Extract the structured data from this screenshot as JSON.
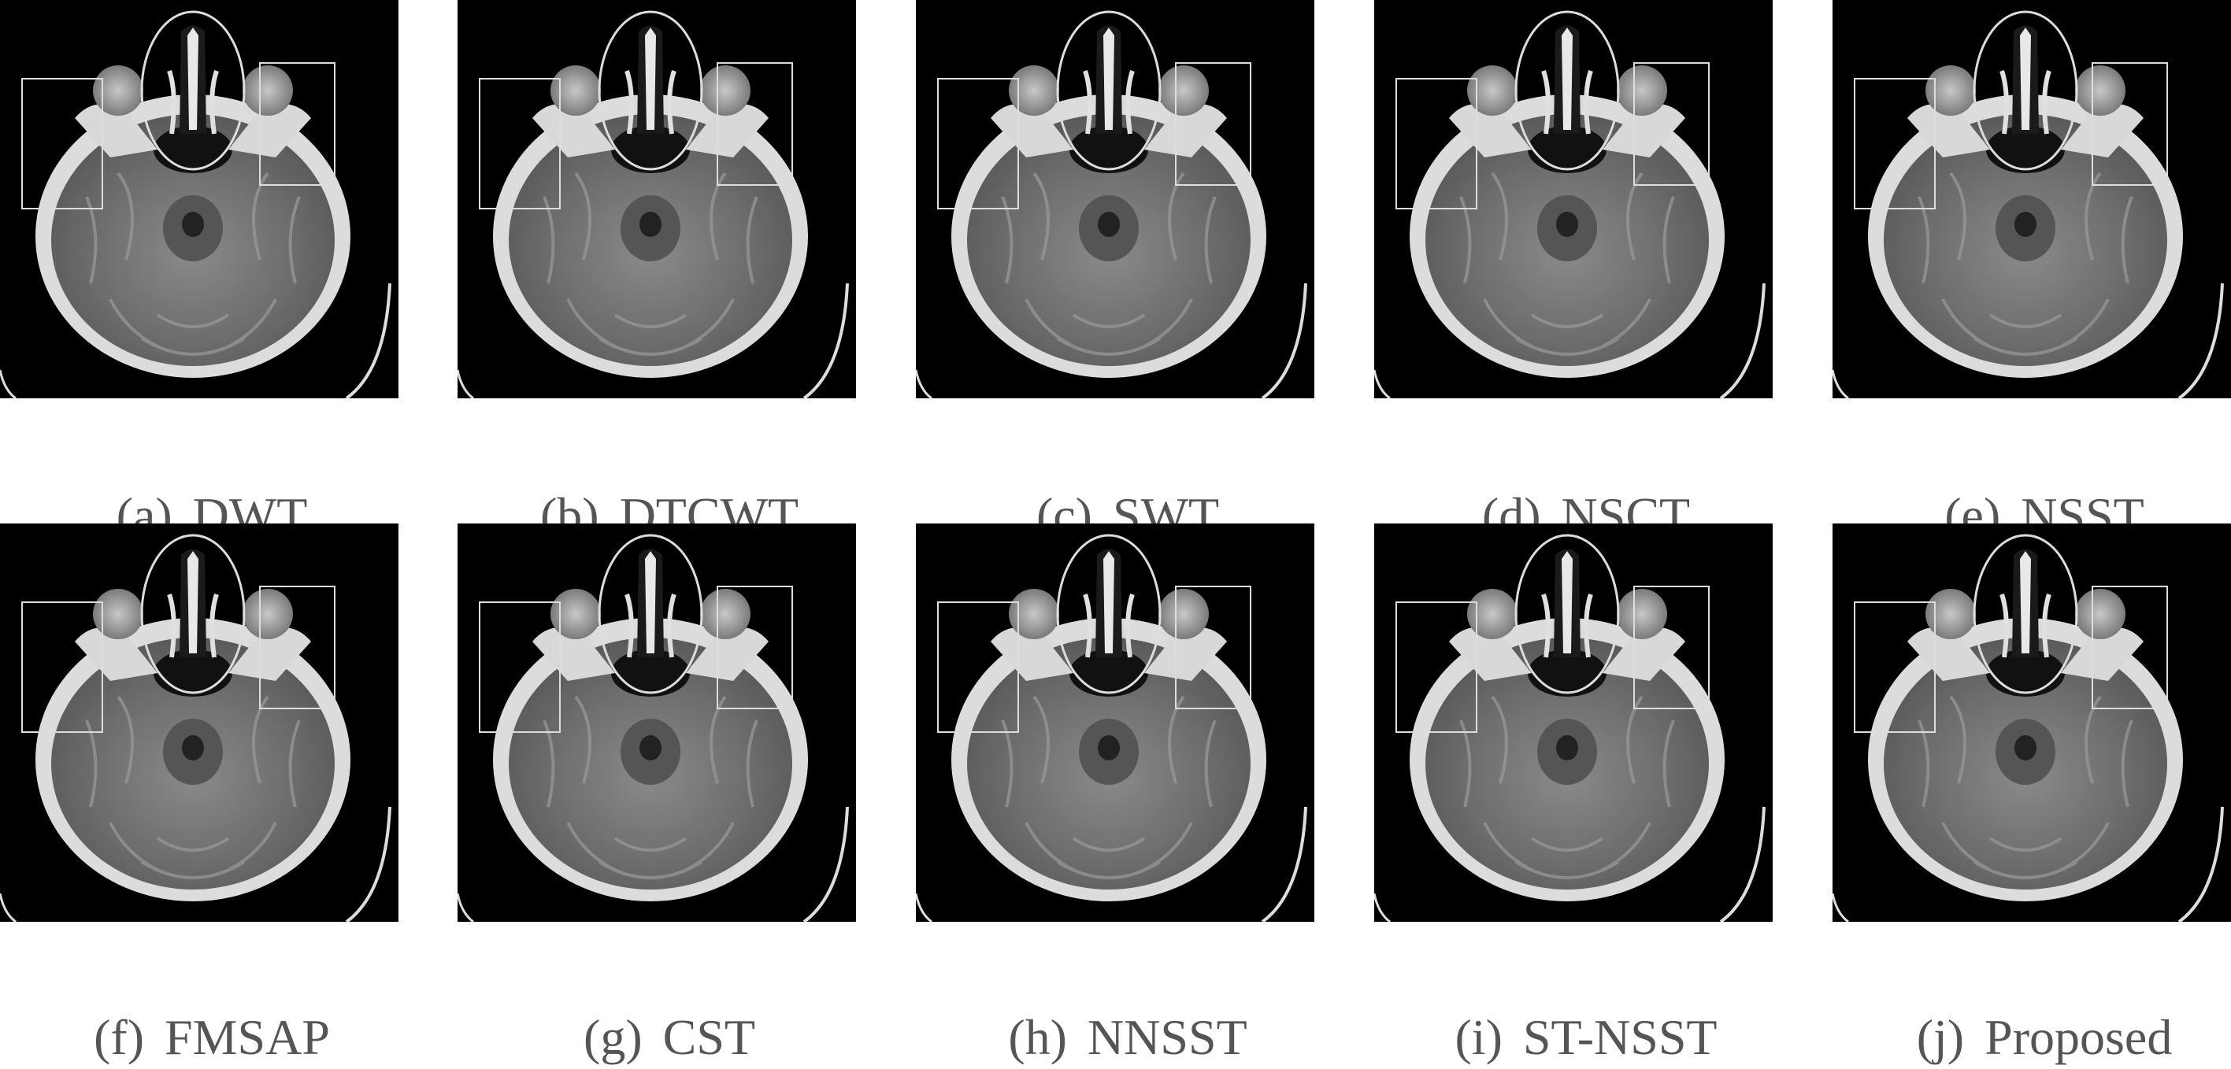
{
  "figure": {
    "row1": [
      {
        "tag": "(a)",
        "method": "DWT"
      },
      {
        "tag": "(b)",
        "method": "DTCWT"
      },
      {
        "tag": "(c)",
        "method": "SWT"
      },
      {
        "tag": "(d)",
        "method": "NSCT"
      },
      {
        "tag": "(e)",
        "method": "NSST"
      }
    ],
    "row2": [
      {
        "tag": "(f)",
        "method": "FMSAP"
      },
      {
        "tag": "(g)",
        "method": "CST"
      },
      {
        "tag": "(h)",
        "method": "NNSST"
      },
      {
        "tag": "(i)",
        "method": "ST-NSST"
      },
      {
        "tag": "(j)",
        "method": "Proposed"
      }
    ]
  }
}
